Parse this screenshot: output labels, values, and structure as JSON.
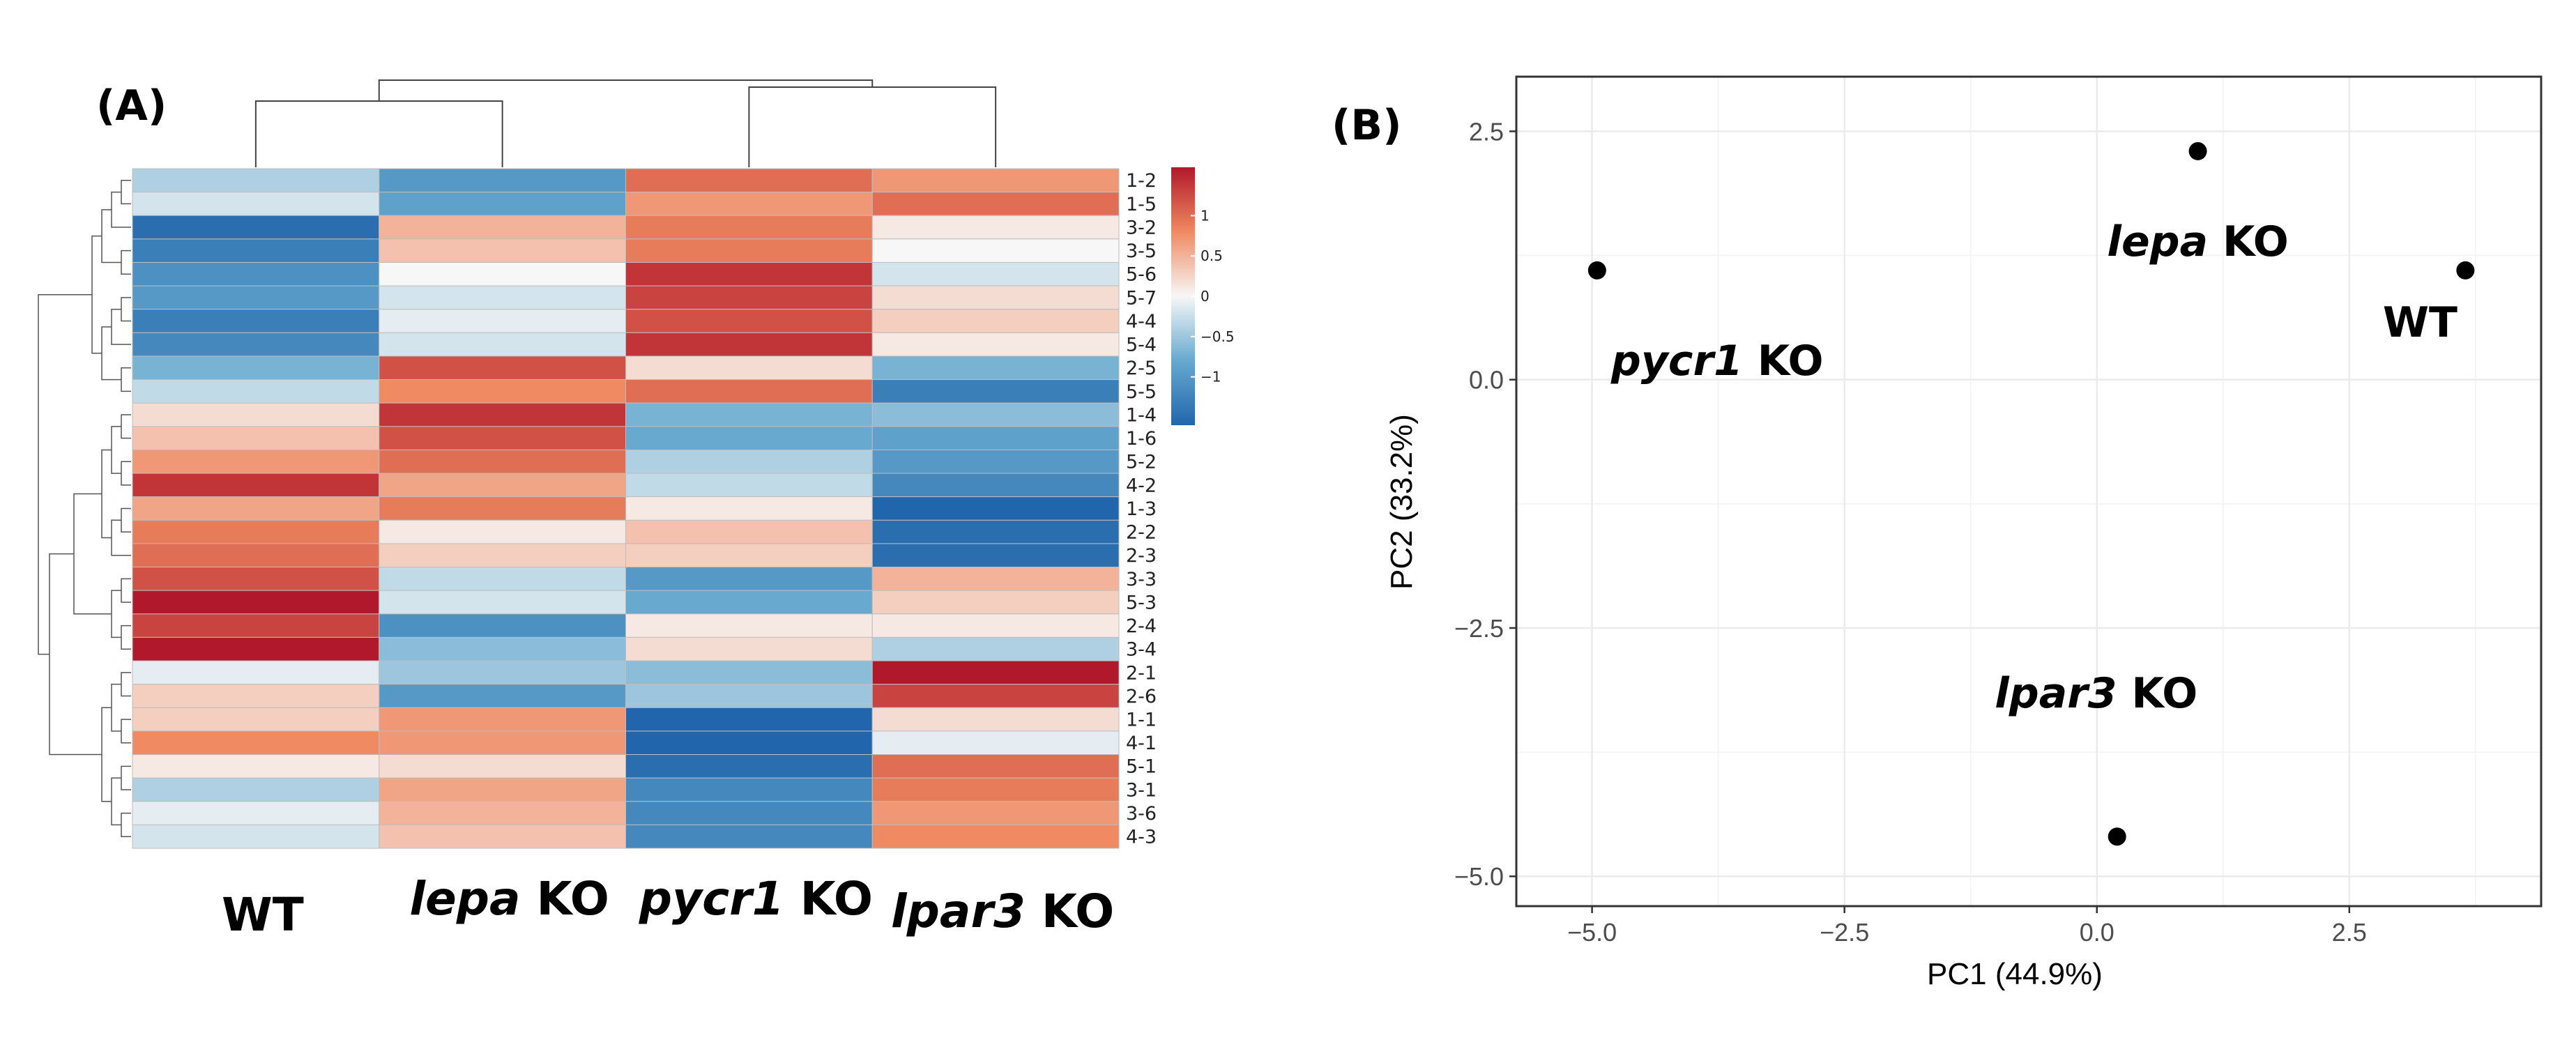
{
  "panels": {
    "a_label": "(A)",
    "b_label": "(B)"
  },
  "chart_data": [
    {
      "type": "heatmap",
      "title": "",
      "columns": [
        {
          "prefix": "",
          "suffix": "WT"
        },
        {
          "prefix": "lepa",
          "suffix": " KO"
        },
        {
          "prefix": "pycr1",
          "suffix": " KO"
        },
        {
          "prefix": "lpar3",
          "suffix": " KO"
        }
      ],
      "rows": [
        "1-2",
        "1-5",
        "3-2",
        "3-5",
        "5-6",
        "5-7",
        "4-4",
        "5-4",
        "2-5",
        "5-5",
        "1-4",
        "1-6",
        "5-2",
        "4-2",
        "1-3",
        "2-2",
        "2-3",
        "3-3",
        "5-3",
        "2-4",
        "3-4",
        "2-1",
        "2-6",
        "1-1",
        "4-1",
        "5-1",
        "3-1",
        "3-6",
        "4-3"
      ],
      "values": [
        [
          -0.4,
          -1.0,
          1.0,
          0.7
        ],
        [
          -0.2,
          -0.9,
          0.7,
          1.0
        ],
        [
          -1.5,
          0.5,
          0.9,
          0.1
        ],
        [
          -1.3,
          0.4,
          0.9,
          0.0
        ],
        [
          -1.1,
          0.0,
          1.4,
          -0.2
        ],
        [
          -1.0,
          -0.2,
          1.3,
          0.2
        ],
        [
          -1.3,
          -0.1,
          1.2,
          0.3
        ],
        [
          -1.2,
          -0.2,
          1.4,
          0.1
        ],
        [
          -0.7,
          1.2,
          0.2,
          -0.7
        ],
        [
          -0.3,
          0.8,
          1.0,
          -1.3
        ],
        [
          0.2,
          1.4,
          -0.7,
          -0.6
        ],
        [
          0.4,
          1.2,
          -0.8,
          -0.9
        ],
        [
          0.7,
          1.0,
          -0.4,
          -1.0
        ],
        [
          1.4,
          0.6,
          -0.3,
          -1.2
        ],
        [
          0.6,
          0.9,
          0.1,
          -1.6
        ],
        [
          0.9,
          0.1,
          0.4,
          -1.5
        ],
        [
          1.0,
          0.3,
          0.3,
          -1.5
        ],
        [
          1.2,
          -0.3,
          -1.0,
          0.5
        ],
        [
          1.6,
          -0.2,
          -0.8,
          0.3
        ],
        [
          1.3,
          -1.1,
          0.1,
          0.1
        ],
        [
          1.6,
          -0.6,
          0.2,
          -0.4
        ],
        [
          -0.1,
          -0.5,
          -0.6,
          1.6
        ],
        [
          0.3,
          -1.0,
          -0.5,
          1.3
        ],
        [
          0.3,
          0.7,
          -1.6,
          0.2
        ],
        [
          0.8,
          0.7,
          -1.6,
          -0.1
        ],
        [
          0.1,
          0.2,
          -1.5,
          1.0
        ],
        [
          -0.4,
          0.6,
          -1.2,
          0.9
        ],
        [
          -0.1,
          0.5,
          -1.2,
          0.7
        ],
        [
          -0.2,
          0.4,
          -1.2,
          0.8
        ]
      ],
      "colorbar": {
        "ticks": [
          1,
          0.5,
          0,
          -0.5,
          -1
        ],
        "tick_labels": [
          "1",
          "0.5",
          "0",
          "−0.5",
          "−1"
        ],
        "range": [
          -1.6,
          1.6
        ]
      },
      "colors": {
        "low": "#2166ac",
        "mid": "#f7f7f7",
        "high": "#b2182b"
      },
      "column_dendrogram": "WT and lepa KO cluster together; pycr1 KO and lpar3 KO cluster together",
      "row_dendrogram": "hierarchical clustering shown on the left"
    },
    {
      "type": "scatter",
      "title": "",
      "xlabel": "PC1 (44.9%)",
      "ylabel": "PC2 (33.2%)",
      "xlim": [
        -5.75,
        4.4
      ],
      "ylim": [
        -5.3,
        3.05
      ],
      "xticks": [
        -5.0,
        -2.5,
        0.0,
        2.5
      ],
      "xtick_labels": [
        "−5.0",
        "−2.5",
        "0.0",
        "2.5"
      ],
      "yticks": [
        2.5,
        0.0,
        -2.5,
        -5.0
      ],
      "ytick_labels": [
        "2.5",
        "0.0",
        "−2.5",
        "−5.0"
      ],
      "grid": true,
      "points": [
        {
          "prefix": "pycr1",
          "suffix": " KO",
          "x": -4.95,
          "y": 1.1
        },
        {
          "prefix": "lepa",
          "suffix": " KO",
          "x": 1.0,
          "y": 2.3
        },
        {
          "prefix": "",
          "suffix": "WT",
          "x": 3.65,
          "y": 1.1
        },
        {
          "prefix": "lpar3",
          "suffix": " KO",
          "x": 0.2,
          "y": -4.6
        }
      ],
      "colors": {
        "point": "#000000",
        "grid": "#ebebeb",
        "panel_border": "#333333"
      }
    }
  ]
}
